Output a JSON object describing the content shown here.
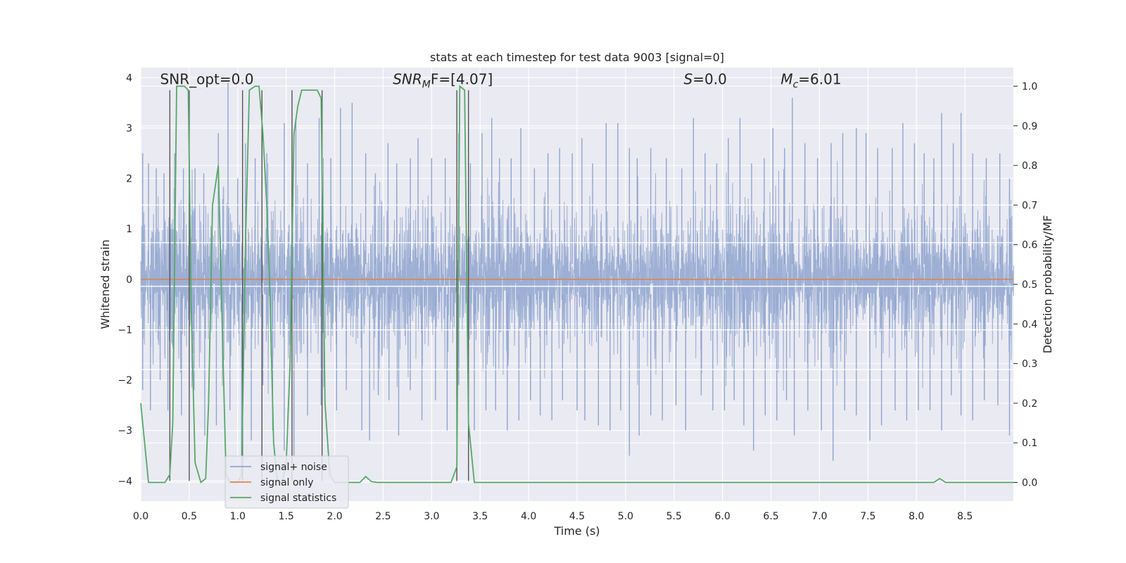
{
  "chart_data": {
    "type": "line",
    "title": "stats at each timestep for test data 9003 [signal=0]",
    "xlabel": "Time (s)",
    "ylabel": "Whitened strain",
    "y2label": "Detection probability/MF",
    "xlim": [
      0.0,
      9.0
    ],
    "ylim": [
      -4.4,
      4.2
    ],
    "y2lim": [
      -0.047,
      1.047
    ],
    "xticks": [
      0.0,
      0.5,
      1.0,
      1.5,
      2.0,
      2.5,
      3.0,
      3.5,
      4.0,
      4.5,
      5.0,
      5.5,
      6.0,
      6.5,
      7.0,
      7.5,
      8.0,
      8.5
    ],
    "xtick_labels": [
      "0.0",
      "0.5",
      "1.0",
      "1.5",
      "2.0",
      "2.5",
      "3.0",
      "3.5",
      "4.0",
      "4.5",
      "5.0",
      "5.5",
      "6.0",
      "6.5",
      "7.0",
      "7.5",
      "8.0",
      "8.5"
    ],
    "yticks": [
      -4,
      -3,
      -2,
      -1,
      0,
      1,
      2,
      3,
      4
    ],
    "ytick_labels": [
      "−4",
      "−3",
      "−2",
      "−1",
      "0",
      "1",
      "2",
      "3",
      "4"
    ],
    "y2ticks": [
      0.0,
      0.1,
      0.2,
      0.3,
      0.4,
      0.5,
      0.6,
      0.7,
      0.8,
      0.9,
      1.0
    ],
    "y2tick_labels": [
      "0.0",
      "0.1",
      "0.2",
      "0.3",
      "0.4",
      "0.5",
      "0.6",
      "0.7",
      "0.8",
      "0.9",
      "1.0"
    ],
    "horizontal_lines_y2": [
      0.285,
      0.385,
      0.495,
      0.605,
      0.7
    ],
    "annotations": [
      {
        "text": "SNR_opt=0.0",
        "x": 0.2,
        "y": 3.9
      },
      {
        "main": "SNR",
        "sub": "M",
        "rest": "F=[4.07]",
        "x": 2.6,
        "y": 3.9
      },
      {
        "main": "S",
        "sub": "",
        "rest": "=0.0",
        "x": 5.6,
        "y": 3.9
      },
      {
        "main": "M",
        "sub": "c",
        "rest": "=6.01",
        "x": 6.6,
        "y": 3.9
      }
    ],
    "series": [
      {
        "name": "signal+ noise",
        "color": "#8fa5cf",
        "note": "dense whitened noise, typical envelope ±2.3, sporadic peaks",
        "band_upper": 2.2,
        "band_lower": -1.75,
        "peaks": [
          [
            0.02,
            2.5
          ],
          [
            0.08,
            2.3
          ],
          [
            0.16,
            2.2
          ],
          [
            0.24,
            2.1
          ],
          [
            0.35,
            2.5
          ],
          [
            0.44,
            2.2
          ],
          [
            0.56,
            2.2
          ],
          [
            0.65,
            2.1
          ],
          [
            0.8,
            2.9
          ],
          [
            0.9,
            3.9
          ],
          [
            1.0,
            2.0
          ],
          [
            1.08,
            2.7
          ],
          [
            1.18,
            2.4
          ],
          [
            1.3,
            2.5
          ],
          [
            1.48,
            3.1
          ],
          [
            1.6,
            3.2
          ],
          [
            1.72,
            2.3
          ],
          [
            1.84,
            3.2
          ],
          [
            1.96,
            2.4
          ],
          [
            2.06,
            3.4
          ],
          [
            2.18,
            3.5
          ],
          [
            2.32,
            2.5
          ],
          [
            2.42,
            2.1
          ],
          [
            2.55,
            2.7
          ],
          [
            2.64,
            2.3
          ],
          [
            2.78,
            2.4
          ],
          [
            2.86,
            2.8
          ],
          [
            3.0,
            2.4
          ],
          [
            3.14,
            2.4
          ],
          [
            3.28,
            2.9
          ],
          [
            3.4,
            2.3
          ],
          [
            3.52,
            2.9
          ],
          [
            3.62,
            3.2
          ],
          [
            3.7,
            2.4
          ],
          [
            3.82,
            2.4
          ],
          [
            3.92,
            3.0
          ],
          [
            4.06,
            2.2
          ],
          [
            4.2,
            2.5
          ],
          [
            4.32,
            2.6
          ],
          [
            4.45,
            2.5
          ],
          [
            4.55,
            2.8
          ],
          [
            4.66,
            2.3
          ],
          [
            4.8,
            3.1
          ],
          [
            4.92,
            3.1
          ],
          [
            5.04,
            2.6
          ],
          [
            5.12,
            2.4
          ],
          [
            5.26,
            2.6
          ],
          [
            5.42,
            2.4
          ],
          [
            5.58,
            2.2
          ],
          [
            5.7,
            3.2
          ],
          [
            5.82,
            2.5
          ],
          [
            5.94,
            2.3
          ],
          [
            6.06,
            2.8
          ],
          [
            6.18,
            3.2
          ],
          [
            6.3,
            2.3
          ],
          [
            6.43,
            2.4
          ],
          [
            6.52,
            3.0
          ],
          [
            6.64,
            2.6
          ],
          [
            6.72,
            3.6
          ],
          [
            6.85,
            2.7
          ],
          [
            6.98,
            2.4
          ],
          [
            7.12,
            2.7
          ],
          [
            7.24,
            2.9
          ],
          [
            7.38,
            3.0
          ],
          [
            7.48,
            2.9
          ],
          [
            7.6,
            2.6
          ],
          [
            7.75,
            2.6
          ],
          [
            7.86,
            3.1
          ],
          [
            7.98,
            2.7
          ],
          [
            8.08,
            2.5
          ],
          [
            8.18,
            2.4
          ],
          [
            8.26,
            3.3
          ],
          [
            8.38,
            2.7
          ],
          [
            8.46,
            3.3
          ],
          [
            8.58,
            2.5
          ],
          [
            8.72,
            2.4
          ],
          [
            8.86,
            2.5
          ],
          [
            8.96,
            2.0
          ]
        ],
        "troughs": [
          [
            0.02,
            -2.2
          ],
          [
            0.1,
            -2.6
          ],
          [
            0.2,
            -2.0
          ],
          [
            0.28,
            -2.6
          ],
          [
            0.42,
            -2.7
          ],
          [
            0.55,
            -2.2
          ],
          [
            0.66,
            -3.1
          ],
          [
            0.78,
            -2.9
          ],
          [
            0.92,
            -2.6
          ],
          [
            1.04,
            -3.5
          ],
          [
            1.14,
            -3.2
          ],
          [
            1.26,
            -2.1
          ],
          [
            1.36,
            -3.0
          ],
          [
            1.48,
            -3.4
          ],
          [
            1.58,
            -3.5
          ],
          [
            1.72,
            -2.7
          ],
          [
            1.86,
            -2.5
          ],
          [
            2.02,
            -2.6
          ],
          [
            2.12,
            -2.2
          ],
          [
            2.28,
            -3.0
          ],
          [
            2.36,
            -3.2
          ],
          [
            2.45,
            -2.3
          ],
          [
            2.56,
            -2.4
          ],
          [
            2.66,
            -3.1
          ],
          [
            2.78,
            -2.2
          ],
          [
            2.9,
            -2.8
          ],
          [
            3.04,
            -2.4
          ],
          [
            3.16,
            -3.0
          ],
          [
            3.28,
            -2.1
          ],
          [
            3.44,
            -3.0
          ],
          [
            3.56,
            -2.6
          ],
          [
            3.66,
            -2.6
          ],
          [
            3.78,
            -3.0
          ],
          [
            3.9,
            -2.8
          ],
          [
            4.02,
            -2.4
          ],
          [
            4.12,
            -2.7
          ],
          [
            4.24,
            -2.8
          ],
          [
            4.35,
            -2.4
          ],
          [
            4.5,
            -2.6
          ],
          [
            4.58,
            -2.8
          ],
          [
            4.72,
            -2.9
          ],
          [
            4.84,
            -3.0
          ],
          [
            4.95,
            -2.6
          ],
          [
            5.04,
            -3.5
          ],
          [
            5.14,
            -3.1
          ],
          [
            5.26,
            -2.7
          ],
          [
            5.38,
            -2.8
          ],
          [
            5.52,
            -2.5
          ],
          [
            5.62,
            -3.0
          ],
          [
            5.78,
            -2.3
          ],
          [
            5.9,
            -2.6
          ],
          [
            6.02,
            -2.6
          ],
          [
            6.12,
            -2.4
          ],
          [
            6.22,
            -2.9
          ],
          [
            6.32,
            -3.4
          ],
          [
            6.44,
            -2.7
          ],
          [
            6.56,
            -2.8
          ],
          [
            6.66,
            -2.4
          ],
          [
            6.74,
            -3.1
          ],
          [
            6.88,
            -2.6
          ],
          [
            7.02,
            -3.0
          ],
          [
            7.14,
            -3.6
          ],
          [
            7.26,
            -2.6
          ],
          [
            7.38,
            -2.7
          ],
          [
            7.52,
            -3.2
          ],
          [
            7.64,
            -2.9
          ],
          [
            7.78,
            -2.6
          ],
          [
            7.9,
            -2.8
          ],
          [
            8.02,
            -2.6
          ],
          [
            8.14,
            -2.6
          ],
          [
            8.26,
            -3.0
          ],
          [
            8.36,
            -2.3
          ],
          [
            8.46,
            -2.7
          ],
          [
            8.58,
            -2.8
          ],
          [
            8.7,
            -2.4
          ],
          [
            8.84,
            -2.5
          ],
          [
            8.96,
            -3.1
          ]
        ]
      },
      {
        "name": "signal only",
        "color": "#dd8452",
        "x": [
          0.0,
          9.0
        ],
        "y": [
          0.0,
          0.0
        ]
      },
      {
        "name": "signal statistics",
        "color": "#55a868",
        "axis": "right",
        "x": [
          0.0,
          0.04,
          0.08,
          0.16,
          0.25,
          0.3,
          0.33,
          0.37,
          0.45,
          0.49,
          0.52,
          0.56,
          0.62,
          0.67,
          0.7,
          0.74,
          0.8,
          0.84,
          0.88,
          0.92,
          1.0,
          1.04,
          1.08,
          1.12,
          1.18,
          1.22,
          1.26,
          1.3,
          1.33,
          1.37,
          1.41,
          1.46,
          1.5,
          1.54,
          1.58,
          1.62,
          1.66,
          1.7,
          1.82,
          1.86,
          1.9,
          1.95,
          2.0,
          2.06,
          2.1,
          2.26,
          2.32,
          2.38,
          2.44,
          2.6,
          3.2,
          3.26,
          3.29,
          3.34,
          3.38,
          3.44,
          8.18,
          8.24,
          8.3,
          9.0
        ],
        "y": [
          0.2,
          0.1,
          0.0,
          0.0,
          0.0,
          0.02,
          0.15,
          1.0,
          1.0,
          0.99,
          0.45,
          0.05,
          0.0,
          0.01,
          0.2,
          0.7,
          0.8,
          0.4,
          0.02,
          0.0,
          0.0,
          0.02,
          0.6,
          0.99,
          1.0,
          1.0,
          0.88,
          0.7,
          0.5,
          0.1,
          0.0,
          0.0,
          0.05,
          0.3,
          0.88,
          0.95,
          0.99,
          0.99,
          0.99,
          0.97,
          0.2,
          0.02,
          0.0,
          0.0,
          0.0,
          0.0,
          0.015,
          0.002,
          0.0,
          0.0,
          0.0,
          0.04,
          1.0,
          0.99,
          0.15,
          0.0,
          0.0,
          0.01,
          0.0,
          0.0
        ]
      }
    ],
    "vertical_markers_x": [
      0.3,
      0.5,
      1.05,
      1.25,
      1.56,
      1.87,
      3.26,
      3.38
    ],
    "legend": {
      "position": "lower-left",
      "entries": [
        "signal+ noise",
        "signal only",
        "signal statistics"
      ]
    }
  }
}
